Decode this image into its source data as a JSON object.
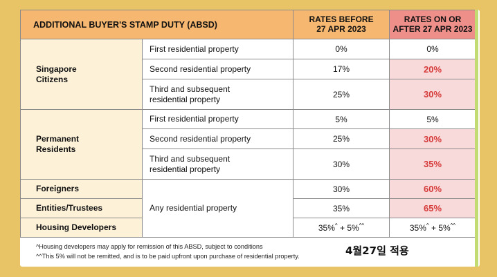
{
  "header": {
    "title": "ADDITIONAL BUYER'S STAMP DUTY (ABSD)",
    "before_line1": "RATES BEFORE",
    "before_line2": "27 APR 2023",
    "after_line1": "RATES ON OR",
    "after_line2": "AFTER 27 APR 2023"
  },
  "groups": {
    "citizens_line1": "Singapore",
    "citizens_line2": "Citizens",
    "pr_line1": "Permanent",
    "pr_line2": "Residents",
    "foreigners": "Foreigners",
    "entities": "Entities/Trustees",
    "developers": "Housing Developers"
  },
  "rows": {
    "sc1": {
      "desc": "First residential property",
      "before": "0%",
      "after": "0%"
    },
    "sc2": {
      "desc": "Second residential property",
      "before": "17%",
      "after": "20%"
    },
    "sc3": {
      "desc_line1": "Third and subsequent",
      "desc_line2": "residential property",
      "before": "25%",
      "after": "30%"
    },
    "pr1": {
      "desc": "First residential property",
      "before": "5%",
      "after": "5%"
    },
    "pr2": {
      "desc": "Second residential property",
      "before": "25%",
      "after": "30%"
    },
    "pr3": {
      "desc_line1": "Third and subsequent",
      "desc_line2": "residential property",
      "before": "30%",
      "after": "35%"
    },
    "any_desc": "Any residential property",
    "fo": {
      "before": "30%",
      "after": "60%"
    },
    "en": {
      "before": "35%",
      "after": "65%"
    },
    "hd": {
      "base": "35%",
      "base_sup": "^",
      "plus": " + 5%",
      "plus_sup": "^^"
    }
  },
  "footnotes": {
    "line1": "^Housing developers may apply for remission of this ABSD, subject to conditions",
    "line2": "^^This 5% will not be remitted, and is to be paid upfront upon purchase of residential property."
  },
  "korean_note": "4월27일 적용",
  "colors": {
    "background": "#e9c466",
    "header_orange": "#f6b870",
    "header_red": "#ef8f8a",
    "group_cream": "#fdf1d8",
    "highlight_pink": "#f9dada",
    "highlight_text": "#d63b3b",
    "side_strip": "#c3dc72"
  }
}
